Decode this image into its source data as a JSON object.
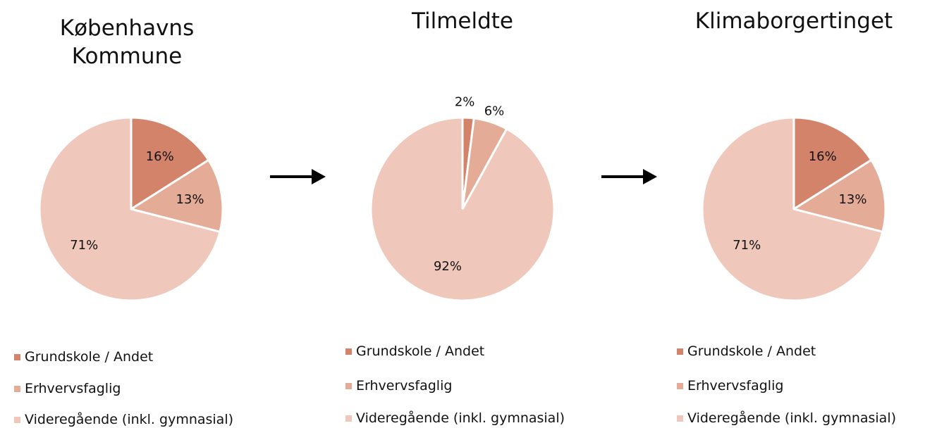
{
  "chart_data": [
    {
      "type": "pie",
      "title": "Københavns Kommune",
      "categories": [
        "Grundskole / Andet",
        "Erhvervsfaglig",
        "Videregående (inkl. gymnasial)"
      ],
      "values": [
        16,
        13,
        71
      ],
      "value_labels": [
        "16%",
        "13%",
        "71%"
      ],
      "colors": [
        "#d4836b",
        "#e4ab97",
        "#efc8bb"
      ]
    },
    {
      "type": "pie",
      "title": "Tilmeldte",
      "categories": [
        "Grundskole / Andet",
        "Erhvervsfaglig",
        "Videregående (inkl. gymnasial)"
      ],
      "values": [
        2,
        6,
        92
      ],
      "value_labels": [
        "2%",
        "6%",
        "92%"
      ],
      "colors": [
        "#d4836b",
        "#e4ab97",
        "#efc8bb"
      ]
    },
    {
      "type": "pie",
      "title": "Klimaborgertinget",
      "categories": [
        "Grundskole / Andet",
        "Erhvervsfaglig",
        "Videregående (inkl. gymnasial)"
      ],
      "values": [
        16,
        13,
        71
      ],
      "value_labels": [
        "16%",
        "13%",
        "71%"
      ],
      "colors": [
        "#d4836b",
        "#e4ab97",
        "#efc8bb"
      ]
    }
  ]
}
